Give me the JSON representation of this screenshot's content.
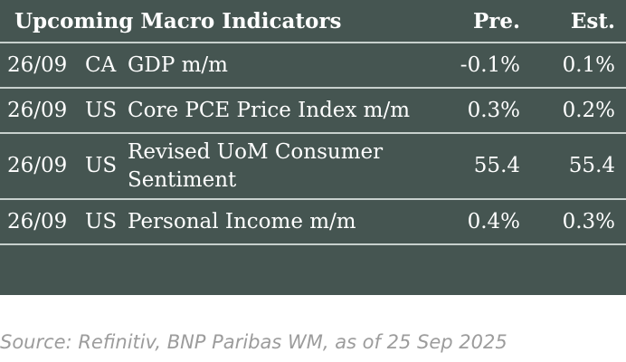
{
  "header": {
    "title": "Upcoming Macro Indicators",
    "col_prev": "Pre.",
    "col_est": "Est."
  },
  "rows": [
    {
      "date": "26/09",
      "country": "CA",
      "indicator": "GDP m/m",
      "previous": "-0.1%",
      "estimate": "0.1%"
    },
    {
      "date": "26/09",
      "country": "US",
      "indicator": "Core PCE Price Index m/m",
      "previous": "0.3%",
      "estimate": "0.2%"
    },
    {
      "date": "26/09",
      "country": "US",
      "indicator": "Revised UoM Consumer Sentiment",
      "previous": "55.4",
      "estimate": "55.4"
    },
    {
      "date": "26/09",
      "country": "US",
      "indicator": "Personal Income m/m",
      "previous": "0.4%",
      "estimate": "0.3%"
    }
  ],
  "source": "Source: Refinitiv, BNP Paribas WM, as of 25 Sep 2025",
  "colors": {
    "panel_background": "#455551",
    "row_divider": "#c7d0cd",
    "text": "#ffffff",
    "source_text": "#9c9c9c"
  }
}
